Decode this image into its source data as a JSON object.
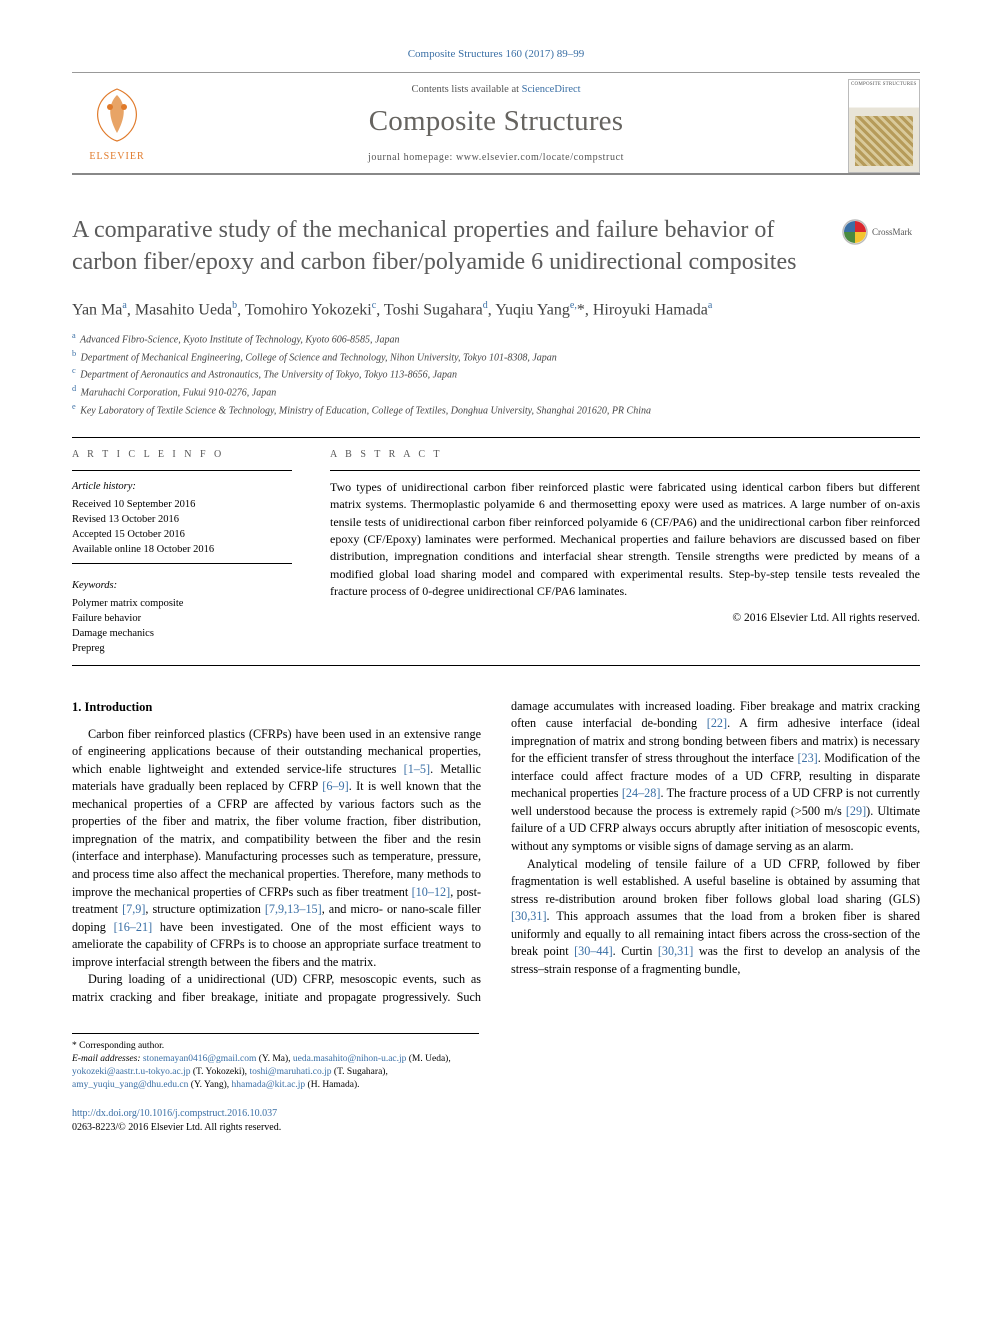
{
  "colors": {
    "link": "#3a6fa5",
    "title_gray": "#5b5b5b",
    "journal_gray": "#666460",
    "text": "#000000",
    "muted": "#555555"
  },
  "typography": {
    "body_family": "Georgia, 'Times New Roman', serif",
    "body_size_pt": 9,
    "title_size_pt": 18,
    "journal_size_pt": 22,
    "authors_size_pt": 12
  },
  "citation": "Composite Structures 160 (2017) 89–99",
  "header": {
    "contents_prefix": "Contents lists available at ",
    "contents_link": "ScienceDirect",
    "journal": "Composite Structures",
    "homepage_prefix": "journal homepage: ",
    "homepage_url": "www.elsevier.com/locate/compstruct",
    "publisher_logo_label": "ELSEVIER",
    "cover_label": "COMPOSITE STRUCTURES"
  },
  "crossmark_label": "CrossMark",
  "title": "A comparative study of the mechanical properties and failure behavior of carbon fiber/epoxy and carbon fiber/polyamide 6 unidirectional composites",
  "authors_html": "Yan Ma<sup>a</sup>, Masahito Ueda<sup>b</sup>, Tomohiro Yokozeki<sup>c</sup>, Toshi Sugahara<sup>d</sup>, Yuqiu Yang<sup>e,</sup><span class='star'>*</span>, Hiroyuki Hamada<sup>a</sup>",
  "affiliations": [
    {
      "key": "a",
      "text": "Advanced Fibro-Science, Kyoto Institute of Technology, Kyoto 606-8585, Japan"
    },
    {
      "key": "b",
      "text": "Department of Mechanical Engineering, College of Science and Technology, Nihon University, Tokyo 101-8308, Japan"
    },
    {
      "key": "c",
      "text": "Department of Aeronautics and Astronautics, The University of Tokyo, Tokyo 113-8656, Japan"
    },
    {
      "key": "d",
      "text": "Maruhachi Corporation, Fukui 910-0276, Japan"
    },
    {
      "key": "e",
      "text": "Key Laboratory of Textile Science & Technology, Ministry of Education, College of Textiles, Donghua University, Shanghai 201620, PR China"
    }
  ],
  "article_info": {
    "label": "A R T I C L E   I N F O",
    "history_label": "Article history:",
    "history": [
      "Received 10 September 2016",
      "Revised 13 October 2016",
      "Accepted 15 October 2016",
      "Available online 18 October 2016"
    ],
    "keywords_label": "Keywords:",
    "keywords": [
      "Polymer matrix composite",
      "Failure behavior",
      "Damage mechanics",
      "Prepreg"
    ]
  },
  "abstract": {
    "label": "A B S T R A C T",
    "text": "Two types of unidirectional carbon fiber reinforced plastic were fabricated using identical carbon fibers but different matrix systems. Thermoplastic polyamide 6 and thermosetting epoxy were used as matrices. A large number of on-axis tensile tests of unidirectional carbon fiber reinforced polyamide 6 (CF/PA6) and the unidirectional carbon fiber reinforced epoxy (CF/Epoxy) laminates were performed. Mechanical properties and failure behaviors are discussed based on fiber distribution, impregnation conditions and interfacial shear strength. Tensile strengths were predicted by means of a modified global load sharing model and compared with experimental results. Step-by-step tensile tests revealed the fracture process of 0-degree unidirectional CF/PA6 laminates.",
    "copyright": "© 2016 Elsevier Ltd. All rights reserved."
  },
  "body": {
    "section_heading": "1. Introduction",
    "p1a": "Carbon fiber reinforced plastics (CFRPs) have been used in an extensive range of engineering applications because of their outstanding mechanical properties, which enable lightweight and extended service-life structures ",
    "r1": "[1–5]",
    "p1b": ". Metallic materials have gradually been replaced by CFRP ",
    "r2": "[6–9]",
    "p1c": ". It is well known that the mechanical properties of a CFRP are affected by various factors such as the properties of the fiber and matrix, the fiber volume fraction, fiber distribution, impregnation of the matrix, and compatibility between the fiber and the resin (interface and interphase). Manufacturing processes such as temperature, pressure, and process time also affect the mechanical properties. Therefore, many methods to improve the mechanical properties of CFRPs such as fiber treatment ",
    "r3": "[10–12]",
    "p1d": ", post-treatment ",
    "r4": "[7,9]",
    "p1e": ", structure optimization ",
    "r5": "[7,9,13–15]",
    "p1f": ", and micro- or nano-scale filler doping ",
    "r6": "[16–21]",
    "p1g": " have been investigated. One of the most efficient ways to ameliorate the capability of CFRPs is to choose an appropriate surface ",
    "p1h": "treatment to improve interfacial strength between the fibers and the matrix.",
    "p2a": "During loading of a unidirectional (UD) CFRP, mesoscopic events, such as matrix cracking and fiber breakage, initiate and propagate progressively. Such damage accumulates with increased loading. Fiber breakage and matrix cracking often cause interfacial de-bonding ",
    "r7": "[22]",
    "p2b": ". A firm adhesive interface (ideal impregnation of matrix and strong bonding between fibers and matrix) is necessary for the efficient transfer of stress throughout the interface ",
    "r8": "[23]",
    "p2c": ". Modification of the interface could affect fracture modes of a UD CFRP, resulting in disparate mechanical properties ",
    "r9": "[24–28]",
    "p2d": ". The fracture process of a UD CFRP is not currently well understood because the process is extremely rapid (>500 m/s ",
    "r10": "[29]",
    "p2e": "). Ultimate failure of a UD CFRP always occurs abruptly after initiation of mesoscopic events, without any symptoms or visible signs of damage serving as an alarm.",
    "p3a": "Analytical modeling of tensile failure of a UD CFRP, followed by fiber fragmentation is well established. A useful baseline is obtained by assuming that stress re-distribution around broken fiber follows global load sharing (GLS) ",
    "r11": "[30,31]",
    "p3b": ". This approach assumes that the load from a broken fiber is shared uniformly and equally to all remaining intact fibers across the cross-section of the break point ",
    "r12": "[30–44]",
    "p3c": ". Curtin ",
    "r13": "[30,31]",
    "p3d": " was the first to develop an analysis of the stress–strain response of a fragmenting bundle,"
  },
  "footer": {
    "corr_label": "* Corresponding author.",
    "email_label": "E-mail addresses:",
    "emails": [
      {
        "addr": "stonemayan0416@gmail.com",
        "who": "(Y. Ma)"
      },
      {
        "addr": "ueda.masahito@nihon-u.ac.jp",
        "who": "(M. Ueda)"
      },
      {
        "addr": "yokozeki@aastr.t.u-tokyo.ac.jp",
        "who": "(T. Yokozeki)"
      },
      {
        "addr": "toshi@maruhati.co.jp",
        "who": "(T. Sugahara)"
      },
      {
        "addr": "amy_yuqiu_yang@dhu.edu.cn",
        "who": "(Y. Yang)"
      },
      {
        "addr": "hhamada@kit.ac.jp",
        "who": "(H. Hamada)"
      }
    ],
    "doi": "http://dx.doi.org/10.1016/j.compstruct.2016.10.037",
    "issn_line": "0263-8223/© 2016 Elsevier Ltd. All rights reserved."
  }
}
